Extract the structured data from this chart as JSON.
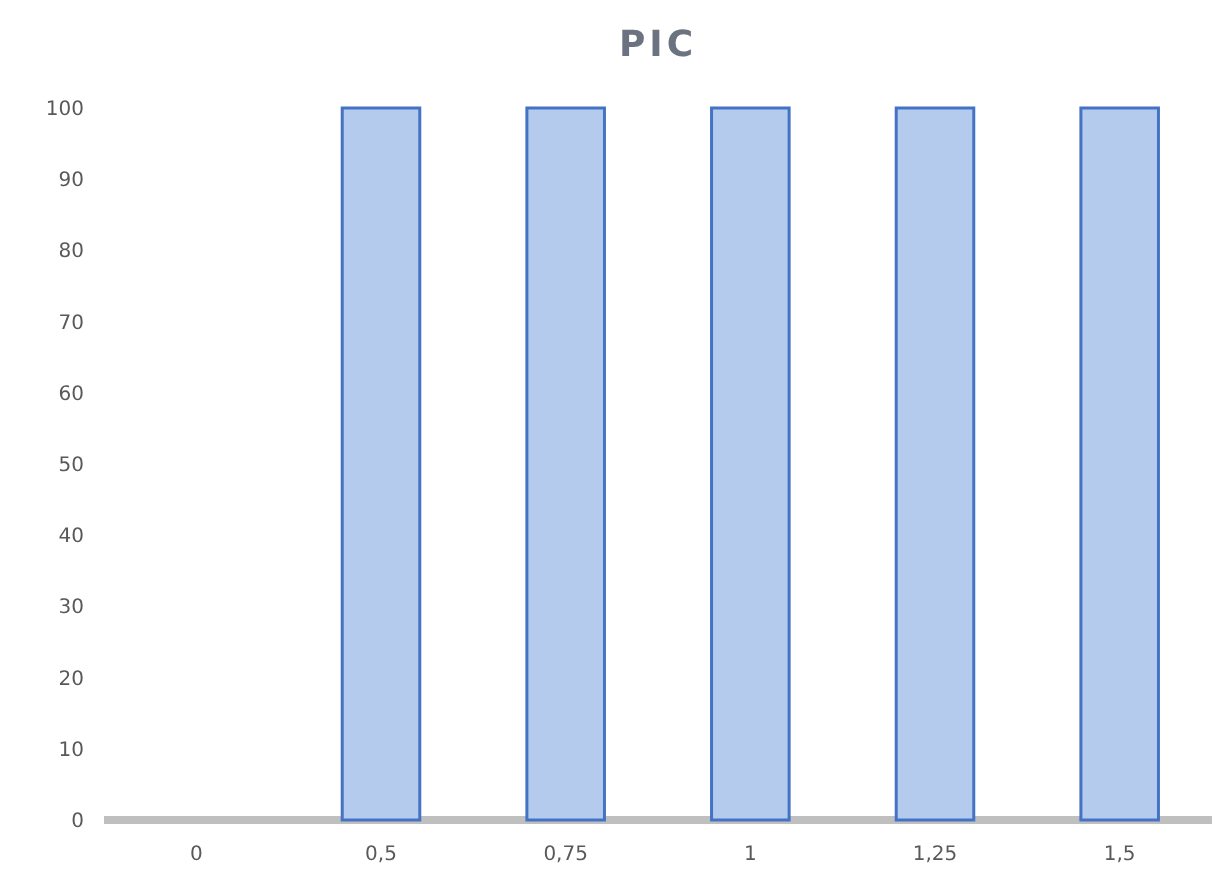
{
  "chart_data": {
    "type": "bar",
    "title": "PIC",
    "categories": [
      "0",
      "0,5",
      "0,75",
      "1",
      "1,25",
      "1,5"
    ],
    "values": [
      0,
      100,
      100,
      100,
      100,
      100
    ],
    "color": "#b4cbee",
    "ylim": [
      0,
      100
    ],
    "yticks": [
      0,
      10,
      20,
      30,
      40,
      50,
      60,
      70,
      80,
      90,
      100
    ],
    "grid": false
  }
}
